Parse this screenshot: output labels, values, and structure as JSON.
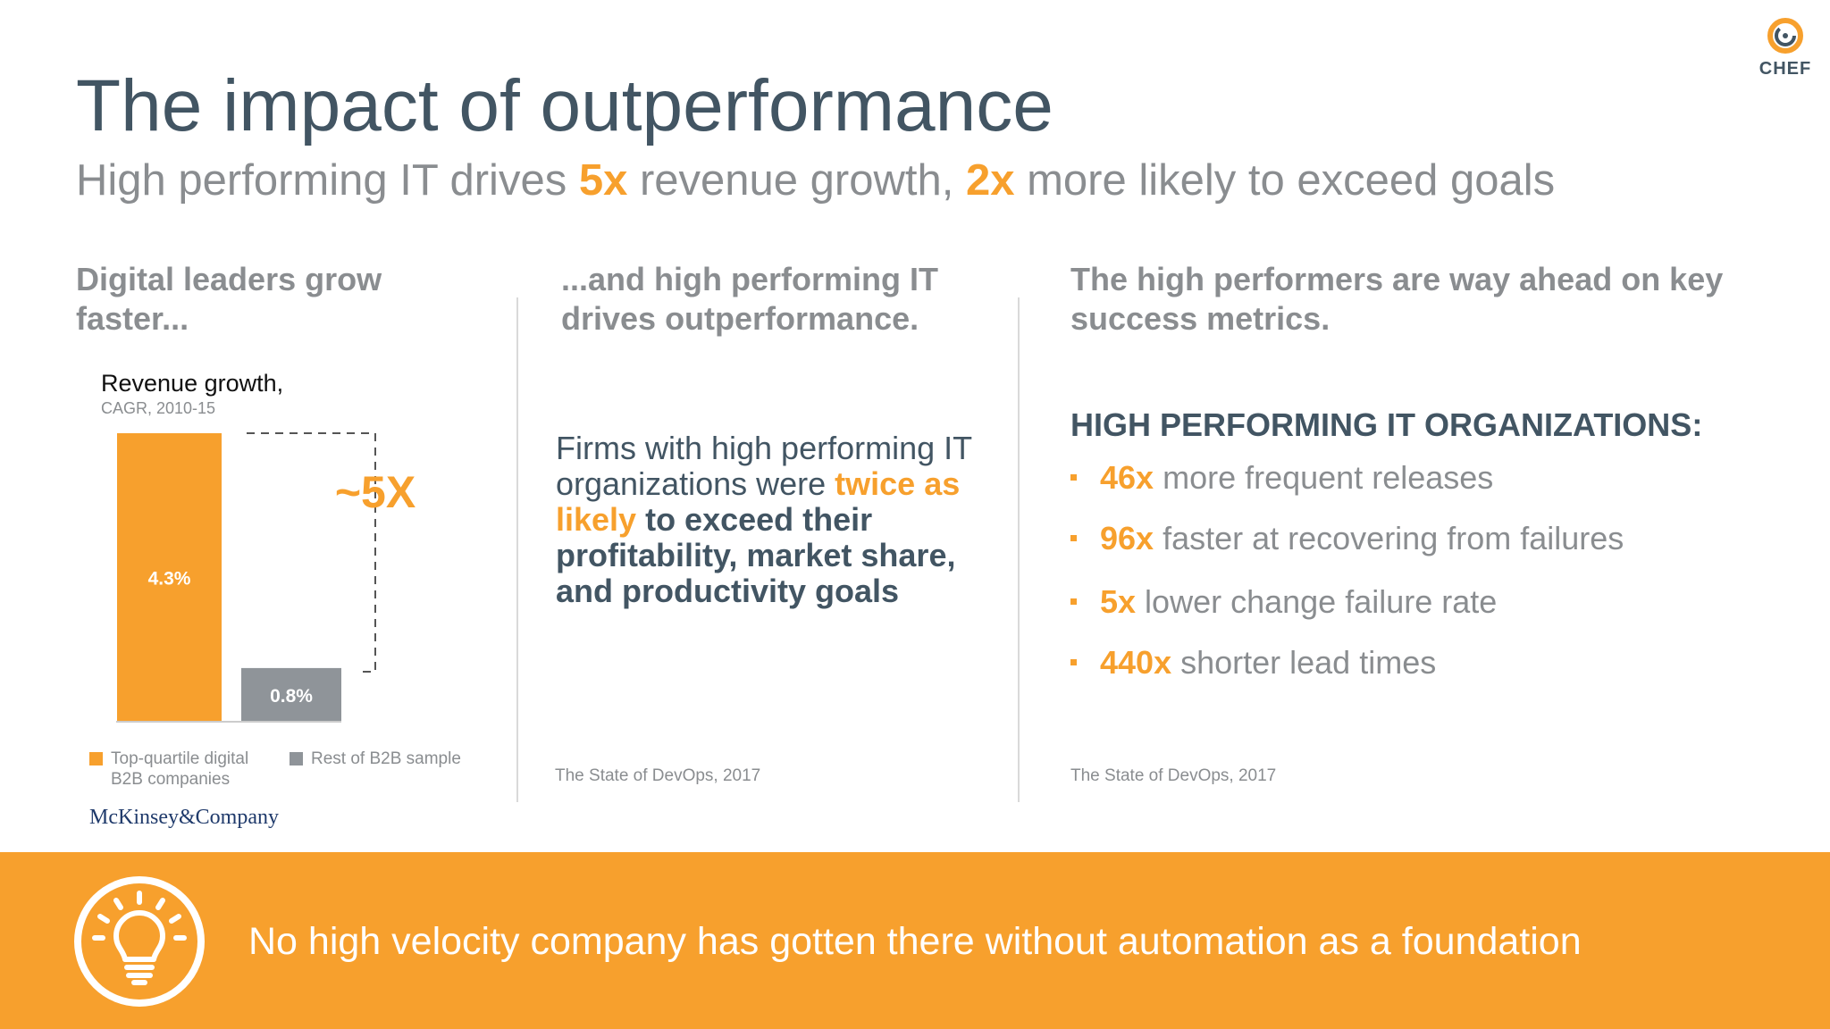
{
  "logo": {
    "text": "CHEF"
  },
  "title": "The impact of outperformance",
  "subtitle": {
    "part1": "High performing IT drives ",
    "hl1": "5x",
    "part2": " revenue growth, ",
    "hl2": "2x",
    "part3": " more likely to exceed goals"
  },
  "columns": {
    "left_heading": "Digital leaders grow faster...",
    "middle_heading": "...and high performing IT drives outperformance.",
    "right_heading": "The high performers are way ahead on key success metrics."
  },
  "chart": {
    "title": "Revenue growth",
    "title_suffix": ",",
    "subtitle": "CAGR, 2010-15",
    "multiplier_label": "~5X",
    "legend": [
      {
        "line1": "Top-quartile digital",
        "line2": "B2B companies"
      },
      {
        "line1": "Rest of B2B sample"
      }
    ],
    "source": "McKinsey&Company"
  },
  "chart_data": {
    "type": "bar",
    "title": "Revenue growth, CAGR, 2010-15",
    "categories": [
      "Top-quartile digital B2B companies",
      "Rest of B2B sample"
    ],
    "values": [
      4.3,
      0.8
    ],
    "value_labels": [
      "4.3%",
      "0.8%"
    ],
    "colors": [
      "#F7A02D",
      "#8F9499"
    ],
    "annotation": "~5X",
    "legend": "bottom"
  },
  "middle": {
    "t1": "Firms with high performing IT organizations were ",
    "hl": "twice as likely",
    "t2": " to exceed their profitability, market share, and productivity goals",
    "source": "The State of DevOps, 2017"
  },
  "right": {
    "heading": "HIGH PERFORMING IT ORGANIZATIONS:",
    "metrics": [
      {
        "value": "46x",
        "text": " more frequent releases"
      },
      {
        "value": "96x",
        "text": " faster at recovering from failures"
      },
      {
        "value": "5x",
        "text": " lower change failure rate"
      },
      {
        "value": "440x",
        "text": " shorter lead times"
      }
    ],
    "source": "The State of DevOps, 2017"
  },
  "banner": {
    "text": "No high velocity company has gotten there without automation as a foundation",
    "icon": "lightbulb-icon"
  },
  "colors": {
    "accent": "#F7A02D",
    "heading": "#425563",
    "muted": "#8a8d90",
    "bar_secondary": "#8F9499"
  }
}
